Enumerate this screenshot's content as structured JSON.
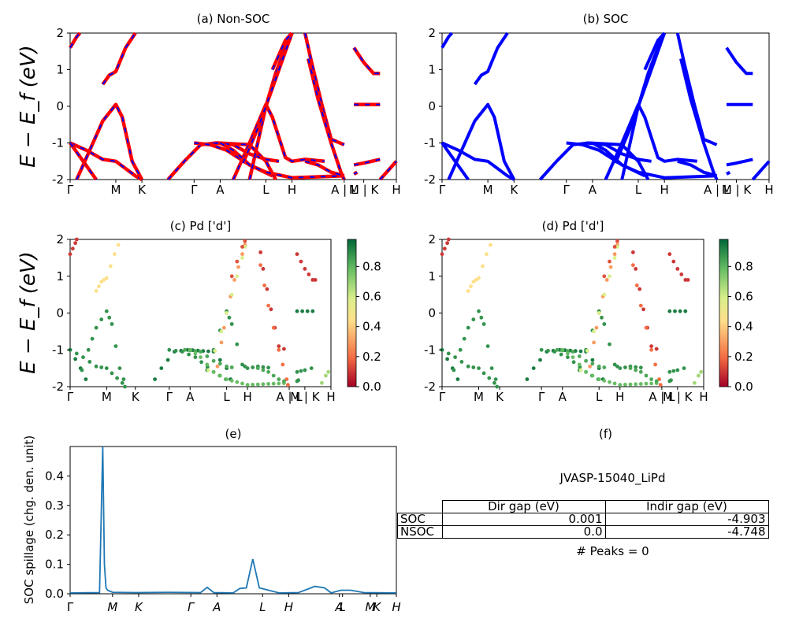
{
  "panels": {
    "a": {
      "title": "(a) Non-SOC"
    },
    "b": {
      "title": "(b) SOC"
    },
    "c": {
      "title": "(c)  Pd ['d']"
    },
    "d": {
      "title": "(d) Pd ['d']"
    },
    "e": {
      "title": "(e)"
    },
    "f": {
      "title": "(f)"
    }
  },
  "band_ylabel": "E − E_f (eV)",
  "kpath_top": [
    "Γ",
    "M",
    "K",
    "Γ",
    "A",
    "L",
    "H",
    "A | L",
    "M | K",
    "H"
  ],
  "kpath_mid": [
    "Γ",
    "M",
    "K",
    "Γ",
    "A",
    "L",
    "H",
    "A | L",
    "M | K",
    "H"
  ],
  "kpath_spillage": [
    "Γ",
    "M",
    "K",
    "Γ",
    "A",
    "L",
    "H",
    "A",
    "L",
    "M",
    "K",
    "H"
  ],
  "colorbar": {
    "ticks": [
      "0.0",
      "0.2",
      "0.4",
      "0.6",
      "0.8"
    ],
    "colors": [
      "#a50026",
      "#f46d43",
      "#fee08b",
      "#d9ef8b",
      "#66bd63",
      "#006837"
    ]
  },
  "summary": {
    "material": "JVASP-15040_LiPd",
    "headers": [
      "Dir gap (eV)",
      "Indir gap (eV)"
    ],
    "rows": [
      {
        "label": "SOC",
        "dir": "0.001",
        "indir": "-4.903"
      },
      {
        "label": "NSOC",
        "dir": "0.0",
        "indir": "-4.748"
      }
    ],
    "peaks": "# Peaks = 0"
  },
  "colors": {
    "nonsoc_red": "#ff0000",
    "nonsoc_blue": "#0000ff",
    "soc_blue": "#0000ff",
    "spillage_line": "#1f77b4"
  },
  "chart_data": [
    {
      "type": "line",
      "title": "(a) Non-SOC",
      "ylabel": "E − E_f (eV)",
      "ylim": [
        -2,
        2
      ],
      "yticks": [
        -2,
        -1,
        0,
        1,
        2
      ],
      "series": [
        {
          "name": "",
          "values": [
            -1.0,
            -1.5,
            0.05,
            -2.0,
            -1.0,
            0.05,
            -1.5,
            1.6,
            0.05
          ]
        }
      ]
    },
    {
      "type": "line",
      "title": "(b) SOC",
      "ylabel": "",
      "ylim": [
        -2,
        2
      ],
      "yticks": [
        -2,
        -1,
        0,
        1,
        2
      ],
      "series": [
        {
          "name": "",
          "values": [
            -0.9,
            -1.5,
            0.05,
            -1.8,
            -0.9,
            0.05,
            -1.5,
            1.5,
            0.05
          ]
        }
      ]
    },
    {
      "type": "scatter",
      "title": "(c)  Pd ['d']",
      "ylabel": "E − E_f (eV)",
      "ylim": [
        -2,
        2
      ],
      "clim": [
        0,
        0.98
      ],
      "series": [
        {
          "name": "",
          "values": [
            0.9,
            0.8,
            0.9,
            0.9,
            0.9,
            0.1
          ]
        }
      ]
    },
    {
      "type": "scatter",
      "title": "(d) Pd ['d']",
      "ylabel": "",
      "ylim": [
        -2,
        2
      ],
      "clim": [
        0,
        0.98
      ],
      "series": [
        {
          "name": "",
          "values": [
            0.9,
            0.8,
            0.9,
            0.9,
            0.9,
            0.1
          ]
        }
      ]
    },
    {
      "type": "line",
      "title": "(e)",
      "ylabel": "SOC spillage (chg. den. unit)",
      "ylim": [
        0,
        0.5
      ],
      "yticks": [
        0.0,
        0.1,
        0.2,
        0.3,
        0.4
      ],
      "series": [
        {
          "name": "",
          "x": [
            0,
            0.09,
            0.1,
            0.105,
            0.11,
            0.115,
            0.13,
            0.2,
            0.3,
            0.4,
            0.42,
            0.44,
            0.5,
            0.52,
            0.54,
            0.56,
            0.58,
            0.64,
            0.7,
            0.75,
            0.78,
            0.8,
            0.83,
            0.86,
            0.9,
            1.0
          ],
          "values": [
            0.003,
            0.004,
            0.5,
            0.1,
            0.02,
            0.012,
            0.005,
            0.004,
            0.005,
            0.004,
            0.022,
            0.004,
            0.003,
            0.018,
            0.02,
            0.118,
            0.02,
            0.003,
            0.004,
            0.025,
            0.02,
            0.003,
            0.012,
            0.012,
            0.004,
            0.003
          ]
        }
      ]
    }
  ]
}
